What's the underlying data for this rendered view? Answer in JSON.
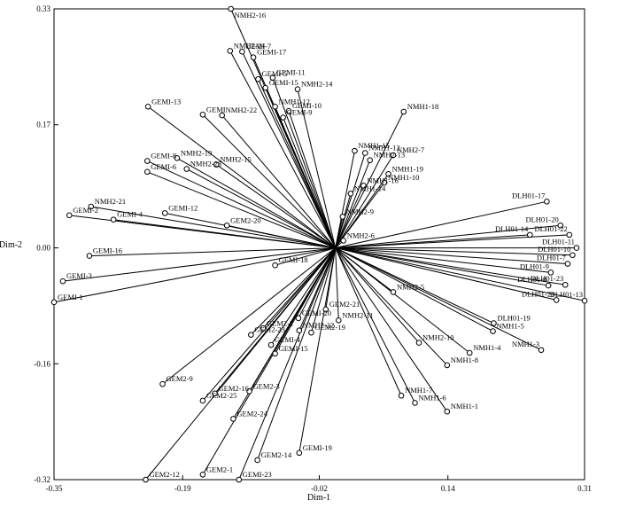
{
  "chart_data": {
    "type": "scatter",
    "subtype": "biplot-with-origin-vectors",
    "xlabel": "Dim-1",
    "ylabel": "Dim-2",
    "xlim": [
      -0.35,
      0.31
    ],
    "ylim": [
      -0.32,
      0.33
    ],
    "xticks": [
      -0.35,
      -0.19,
      -0.02,
      0.14,
      0.31
    ],
    "xtick_labels": [
      "-0.35",
      "-0.19",
      "-0.02",
      "0.14",
      "0.31"
    ],
    "yticks": [
      -0.32,
      -0.16,
      0.0,
      0.17,
      0.33
    ],
    "ytick_labels": [
      "-0.32",
      "-0.16",
      "0.00",
      "0.17",
      "0.33"
    ],
    "origin": [
      0.0,
      0.0
    ],
    "grid": false,
    "legend": "none",
    "points": [
      {
        "label": "NMH2-16",
        "x": -0.13,
        "y": 0.33
      },
      {
        "label": "NMH2-24",
        "x": -0.131,
        "y": 0.272
      },
      {
        "label": "GEMI-7",
        "x": -0.116,
        "y": 0.271
      },
      {
        "label": "GEMI-17",
        "x": -0.102,
        "y": 0.263
      },
      {
        "label": "GEMI-11",
        "x": -0.078,
        "y": 0.235
      },
      {
        "label": "GEMI-5",
        "x": -0.096,
        "y": 0.233
      },
      {
        "label": "GEMI-15",
        "x": -0.087,
        "y": 0.221
      },
      {
        "label": "NMH2-14",
        "x": -0.047,
        "y": 0.219
      },
      {
        "label": "NMH1-12",
        "x": -0.075,
        "y": 0.195
      },
      {
        "label": "GEMI-10",
        "x": -0.058,
        "y": 0.189
      },
      {
        "label": "GEMI-9",
        "x": -0.065,
        "y": 0.18
      },
      {
        "label": "GEMI-13",
        "x": -0.233,
        "y": 0.195
      },
      {
        "label": "GEMI",
        "x": -0.165,
        "y": 0.184
      },
      {
        "label": "NMH2-22",
        "x": -0.141,
        "y": 0.183
      },
      {
        "label": "NMH1-18",
        "x": 0.085,
        "y": 0.188
      },
      {
        "label": "GEMI-8",
        "x": -0.234,
        "y": 0.12
      },
      {
        "label": "GEMI-6",
        "x": -0.234,
        "y": 0.105
      },
      {
        "label": "NMH2-19",
        "x": -0.197,
        "y": 0.124
      },
      {
        "label": "NMH2-23",
        "x": -0.185,
        "y": 0.109
      },
      {
        "label": "NMH2-15",
        "x": -0.148,
        "y": 0.115
      },
      {
        "label": "NMH2-21",
        "x": -0.304,
        "y": 0.057
      },
      {
        "label": "GEMI-2",
        "x": -0.331,
        "y": 0.045
      },
      {
        "label": "GEMI-4",
        "x": -0.276,
        "y": 0.039
      },
      {
        "label": "GEMI-12",
        "x": -0.212,
        "y": 0.048
      },
      {
        "label": "GEM2-20",
        "x": -0.135,
        "y": 0.031
      },
      {
        "label": "GEMI-16",
        "x": -0.306,
        "y": -0.011
      },
      {
        "label": "GEMI-18",
        "x": -0.075,
        "y": -0.024
      },
      {
        "label": "GEMI-3",
        "x": -0.339,
        "y": -0.046
      },
      {
        "label": "GEMI-1",
        "x": -0.35,
        "y": -0.075
      },
      {
        "label": "NMH1-15",
        "x": 0.024,
        "y": 0.134
      },
      {
        "label": "NMH1-12",
        "x": 0.037,
        "y": 0.131
      },
      {
        "label": "NMH2-13",
        "x": 0.043,
        "y": 0.121
      },
      {
        "label": "NMH2-7",
        "x": 0.072,
        "y": 0.128
      },
      {
        "label": "NMH1-19",
        "x": 0.066,
        "y": 0.102
      },
      {
        "label": "NMH1-10",
        "x": 0.061,
        "y": 0.09
      },
      {
        "label": "NMH1-16",
        "x": 0.035,
        "y": 0.086
      },
      {
        "label": "NMH1-14",
        "x": 0.019,
        "y": 0.075
      },
      {
        "label": "NMH2-9",
        "x": 0.009,
        "y": 0.043
      },
      {
        "label": "NMH2-6",
        "x": 0.01,
        "y": 0.01
      },
      {
        "label": "DLH01-17",
        "x": 0.263,
        "y": 0.064
      },
      {
        "label": "DLH01-20",
        "x": 0.28,
        "y": 0.031
      },
      {
        "label": "DLH01-22",
        "x": 0.291,
        "y": 0.018
      },
      {
        "label": "DLH01-14",
        "x": 0.242,
        "y": 0.018
      },
      {
        "label": "DLH01-11",
        "x": 0.3,
        "y": 0.0
      },
      {
        "label": "DLH01-10",
        "x": 0.295,
        "y": -0.01
      },
      {
        "label": "DLH01-7",
        "x": 0.289,
        "y": -0.022
      },
      {
        "label": "DLH01-9",
        "x": 0.268,
        "y": -0.034
      },
      {
        "label": "DLH01-23",
        "x": 0.286,
        "y": -0.051
      },
      {
        "label": "DLH01-8",
        "x": 0.265,
        "y": -0.052
      },
      {
        "label": "DLH01-21",
        "x": 0.275,
        "y": -0.072
      },
      {
        "label": "DLH01-13",
        "x": 0.31,
        "y": -0.073
      },
      {
        "label": "NMH2-5",
        "x": 0.072,
        "y": -0.061
      },
      {
        "label": "DLH01-19",
        "x": 0.197,
        "y": -0.104
      },
      {
        "label": "NMH1-5",
        "x": 0.196,
        "y": -0.115
      },
      {
        "label": "NMH1-3",
        "x": 0.256,
        "y": -0.141
      },
      {
        "label": "NMH1-4",
        "x": 0.167,
        "y": -0.145
      },
      {
        "label": "NMH2-10",
        "x": 0.104,
        "y": -0.131
      },
      {
        "label": "NMH1-8",
        "x": 0.139,
        "y": -0.162
      },
      {
        "label": "NMH1-7",
        "x": 0.082,
        "y": -0.204
      },
      {
        "label": "NMH1-6",
        "x": 0.099,
        "y": -0.214
      },
      {
        "label": "NMH1-1",
        "x": 0.139,
        "y": -0.226
      },
      {
        "label": "GEM2-21",
        "x": -0.012,
        "y": -0.085
      },
      {
        "label": "NMH2-11",
        "x": 0.004,
        "y": -0.1
      },
      {
        "label": "GEMI-20",
        "x": -0.046,
        "y": -0.097
      },
      {
        "label": "GEM2-19",
        "x": -0.03,
        "y": -0.117
      },
      {
        "label": "NMH2-12",
        "x": -0.045,
        "y": -0.114
      },
      {
        "label": "GEM2-2",
        "x": -0.09,
        "y": -0.111
      },
      {
        "label": "GEM2-23",
        "x": -0.105,
        "y": -0.12
      },
      {
        "label": "GEMI-4",
        "x": -0.08,
        "y": -0.134
      },
      {
        "label": "GEMI-15",
        "x": -0.075,
        "y": -0.146
      },
      {
        "label": "GEM2-9",
        "x": -0.215,
        "y": -0.188
      },
      {
        "label": "GEM2-16",
        "x": -0.15,
        "y": -0.201
      },
      {
        "label": "GEM2-25",
        "x": -0.165,
        "y": -0.211
      },
      {
        "label": "GEM2-3",
        "x": -0.107,
        "y": -0.198
      },
      {
        "label": "GEM2-24",
        "x": -0.127,
        "y": -0.236
      },
      {
        "label": "GEMI-19",
        "x": -0.045,
        "y": -0.283
      },
      {
        "label": "GEM2-14",
        "x": -0.097,
        "y": -0.293
      },
      {
        "label": "GEM2-1",
        "x": -0.165,
        "y": -0.313
      },
      {
        "label": "GEMI-23",
        "x": -0.12,
        "y": -0.325
      },
      {
        "label": "GEM2-12",
        "x": -0.236,
        "y": -0.365
      }
    ]
  }
}
